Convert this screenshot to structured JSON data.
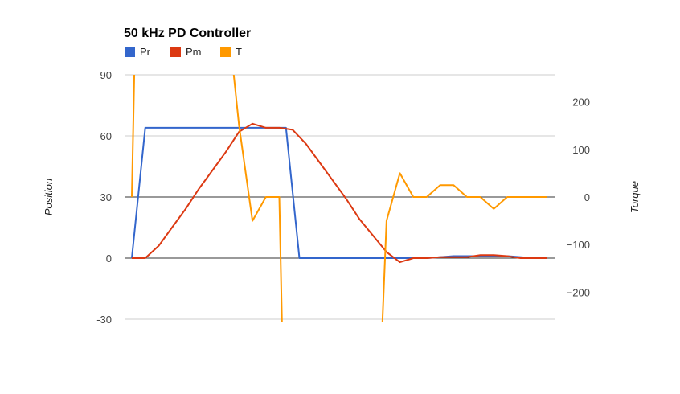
{
  "chart_data": {
    "type": "line",
    "title": "50 kHz PD Controller",
    "ylabel": "Position",
    "y2label": "Torque",
    "ylim": [
      -30,
      90
    ],
    "y2lim": [
      -260,
      260
    ],
    "yticks": [
      90,
      60,
      30,
      0,
      -30
    ],
    "y2ticks": [
      200,
      100,
      0,
      -100,
      -200
    ],
    "ytick_labels": [
      "90",
      "60",
      "30",
      "0",
      "-30"
    ],
    "y2tick_labels": [
      "200",
      "100",
      "0",
      "−100",
      "−200"
    ],
    "xlim": [
      0,
      31
    ],
    "grid": true,
    "legend_position": "top-left",
    "series": [
      {
        "name": "Pr",
        "axis": "left",
        "color": "#3366cc",
        "points": [
          [
            0,
            0
          ],
          [
            1,
            64
          ],
          [
            11,
            64
          ],
          [
            11.5,
            64
          ],
          [
            12.5,
            0
          ],
          [
            20,
            0
          ],
          [
            22,
            0
          ],
          [
            24,
            1
          ],
          [
            26,
            1
          ],
          [
            28,
            1
          ],
          [
            30,
            0
          ],
          [
            31,
            0
          ]
        ]
      },
      {
        "name": "Pm",
        "axis": "left",
        "color": "#dc3912",
        "points": [
          [
            0,
            0
          ],
          [
            1,
            0
          ],
          [
            2,
            6
          ],
          [
            3,
            15
          ],
          [
            4,
            24
          ],
          [
            5,
            34
          ],
          [
            6,
            43
          ],
          [
            7,
            52
          ],
          [
            8,
            62
          ],
          [
            9,
            66
          ],
          [
            10,
            64
          ],
          [
            11,
            64
          ],
          [
            12,
            63
          ],
          [
            13,
            56
          ],
          [
            14,
            47
          ],
          [
            15,
            38
          ],
          [
            16,
            29
          ],
          [
            17,
            19
          ],
          [
            18,
            11
          ],
          [
            19,
            3
          ],
          [
            20,
            -2
          ],
          [
            21,
            0
          ],
          [
            22,
            0
          ],
          [
            23,
            0.5
          ],
          [
            24,
            0.5
          ],
          [
            25,
            0.5
          ],
          [
            26,
            1.5
          ],
          [
            27,
            1.5
          ],
          [
            28,
            1
          ],
          [
            29,
            0
          ],
          [
            30,
            0
          ],
          [
            31,
            0
          ]
        ]
      },
      {
        "name": "T",
        "axis": "right",
        "color": "#ff9900",
        "points": [
          [
            0,
            0
          ],
          [
            0.3,
            420
          ],
          [
            7,
            420
          ],
          [
            8,
            150
          ],
          [
            9,
            -50
          ],
          [
            10,
            0
          ],
          [
            11,
            0
          ],
          [
            11.3,
            -400
          ],
          [
            18.5,
            -400
          ],
          [
            19,
            -50
          ],
          [
            20,
            50
          ],
          [
            21,
            0
          ],
          [
            22,
            0
          ],
          [
            23,
            25
          ],
          [
            24,
            25
          ],
          [
            25,
            0
          ],
          [
            26,
            0
          ],
          [
            27,
            -25
          ],
          [
            28,
            0
          ],
          [
            31,
            0
          ]
        ]
      }
    ]
  }
}
